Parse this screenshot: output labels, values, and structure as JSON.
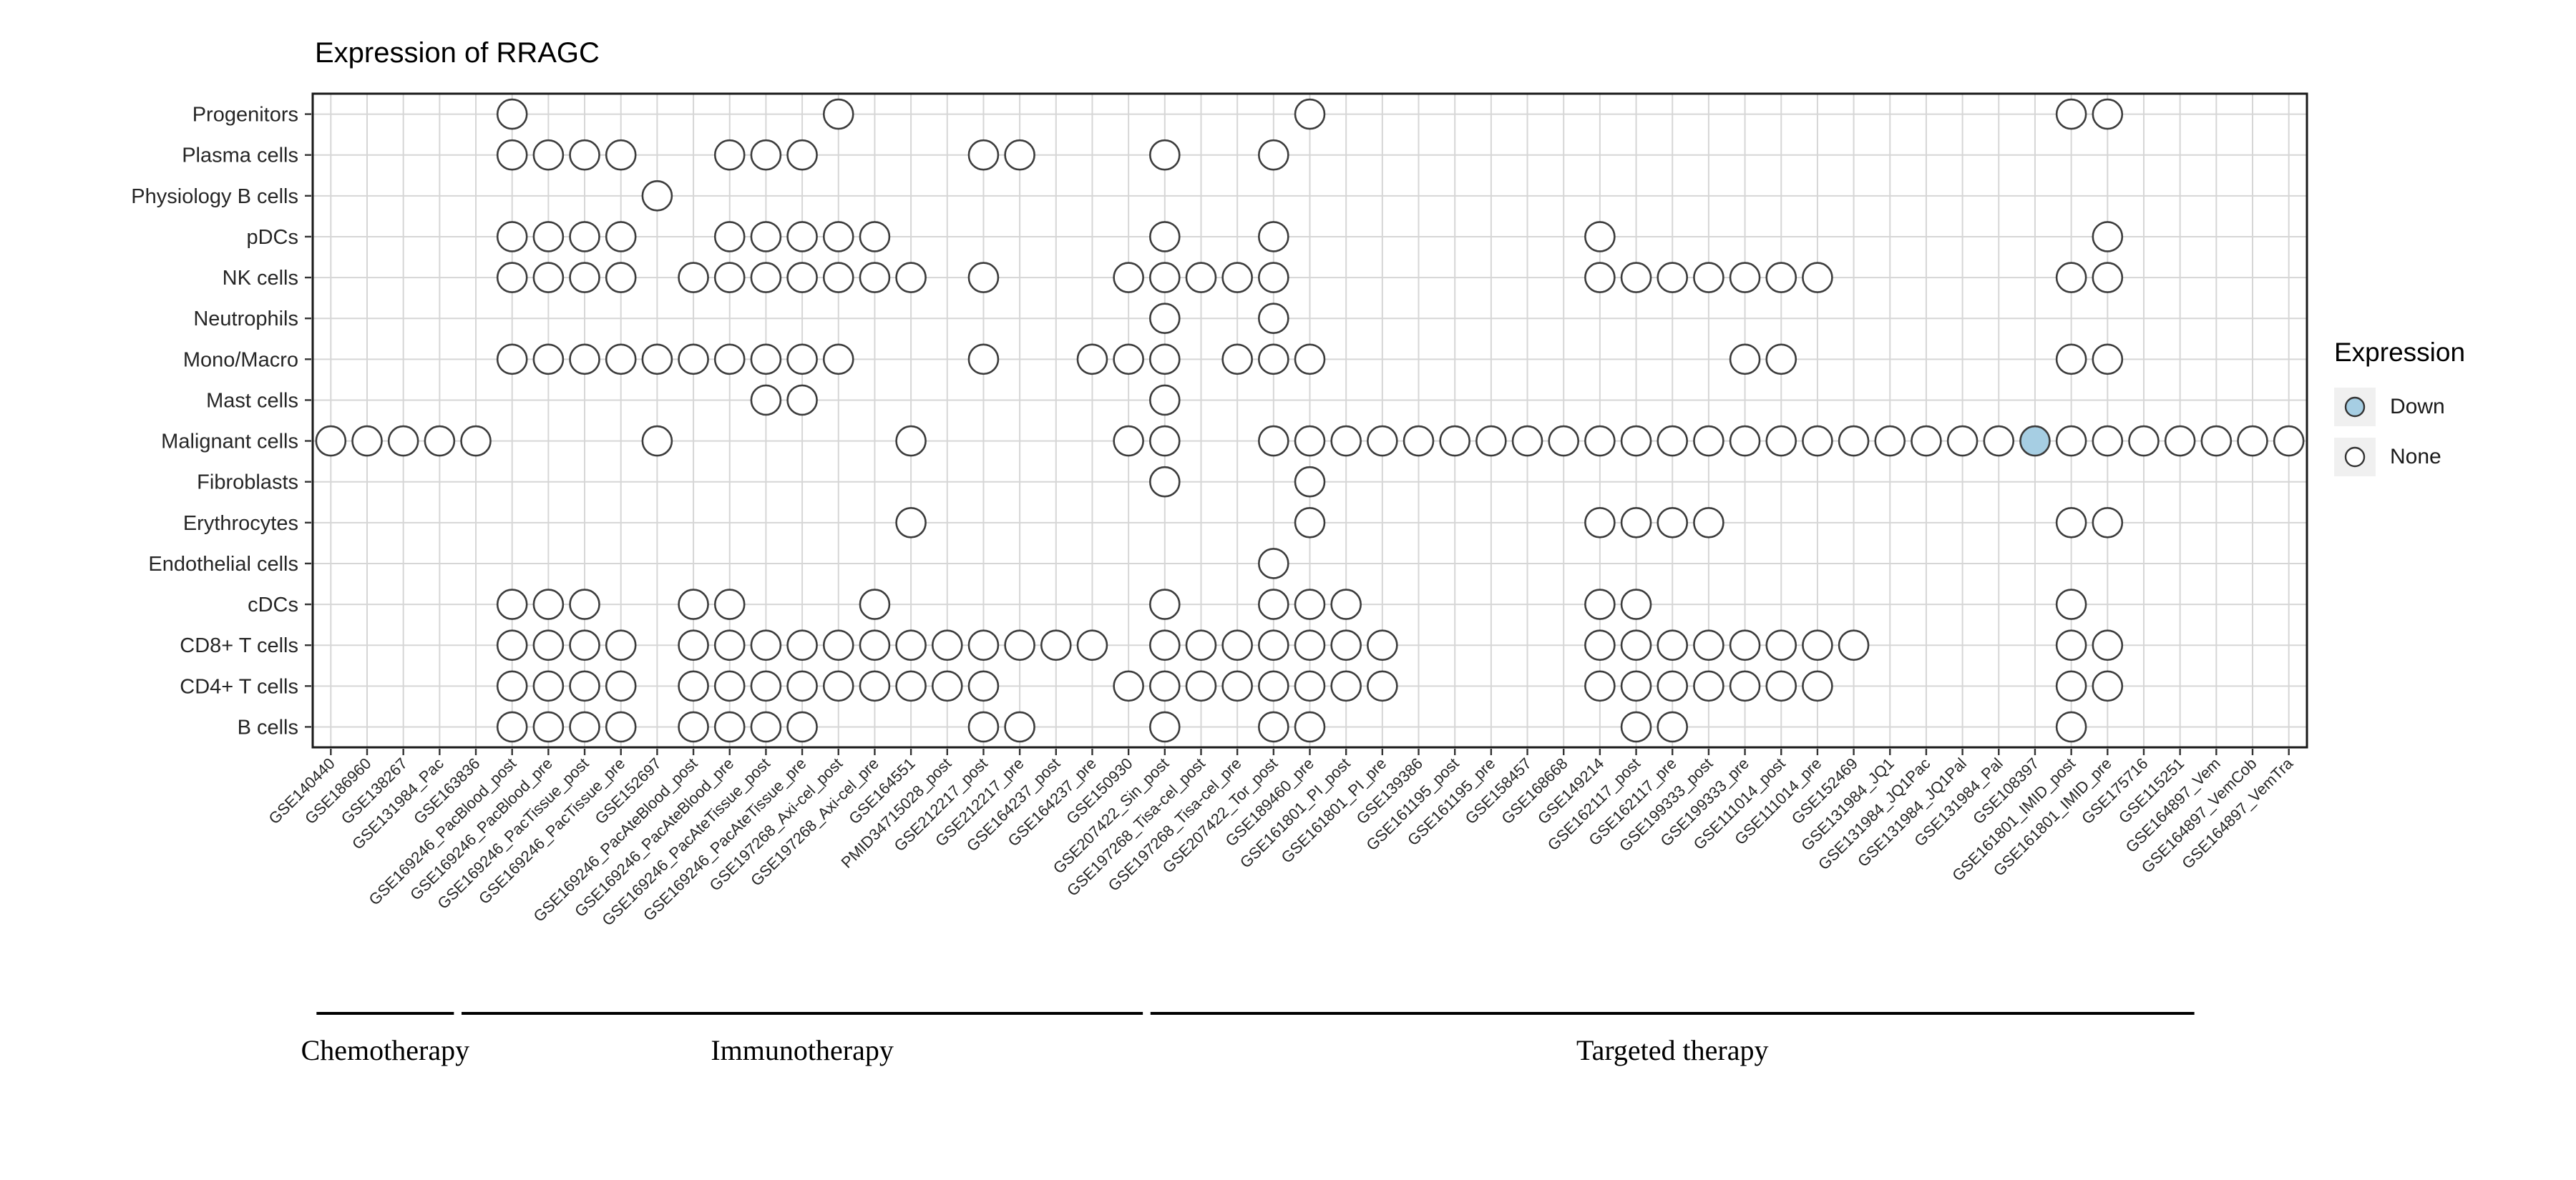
{
  "chart_data": {
    "type": "scatter",
    "variant": "presence-dot-matrix",
    "title": "Expression of RRAGC",
    "grid": true,
    "legend_position": "right",
    "rows": [
      "Progenitors",
      "Plasma cells",
      "Physiology B cells",
      "pDCs",
      "NK cells",
      "Neutrophils",
      "Mono/Macro",
      "Mast cells",
      "Malignant cells",
      "Fibroblasts",
      "Erythrocytes",
      "Endothelial cells",
      "cDCs",
      "CD8+ T cells",
      "CD4+ T cells",
      "B cells"
    ],
    "columns": [
      "GSE140440",
      "GSE186960",
      "GSE138267",
      "GSE131984_Pac",
      "GSE163836",
      "GSE169246_PacBlood_post",
      "GSE169246_PacBlood_pre",
      "GSE169246_PacTissue_post",
      "GSE169246_PacTissue_pre",
      "GSE152697",
      "GSE169246_PacAteBlood_post",
      "GSE169246_PacAteBlood_pre",
      "GSE169246_PacAteTissue_post",
      "GSE169246_PacAteTissue_pre",
      "GSE197268_Axi-cel_post",
      "GSE197268_Axi-cel_pre",
      "GSE164551",
      "PMID34715028_post",
      "GSE212217_post",
      "GSE212217_pre",
      "GSE164237_post",
      "GSE164237_pre",
      "GSE150930",
      "GSE207422_Sin_post",
      "GSE197268_Tisa-cel_post",
      "GSE197268_Tisa-cel_pre",
      "GSE207422_Tor_post",
      "GSE189460_pre",
      "GSE161801_PI_post",
      "GSE161801_PI_pre",
      "GSE139386",
      "GSE161195_post",
      "GSE161195_pre",
      "GSE158457",
      "GSE168668",
      "GSE149214",
      "GSE162117_post",
      "GSE162117_pre",
      "GSE199333_post",
      "GSE199333_pre",
      "GSE111014_post",
      "GSE111014_pre",
      "GSE152469",
      "GSE131984_JQ1",
      "GSE131984_JQ1Pac",
      "GSE131984_JQ1Pal",
      "GSE131984_Pal",
      "GSE108397",
      "GSE161801_IMID_post",
      "GSE161801_IMID_pre",
      "GSE175716",
      "GSE115251",
      "GSE164897_Vem",
      "GSE164897_VemCob",
      "GSE164897_VemTra"
    ],
    "presence": {
      "Progenitors": [
        6,
        15,
        28,
        49,
        50
      ],
      "Plasma cells": [
        6,
        7,
        8,
        9,
        12,
        13,
        14,
        19,
        20,
        24,
        27
      ],
      "Physiology B cells": [
        10
      ],
      "pDCs": [
        6,
        7,
        8,
        9,
        12,
        13,
        14,
        15,
        16,
        24,
        27,
        36,
        50
      ],
      "NK cells": [
        6,
        7,
        8,
        9,
        11,
        12,
        13,
        14,
        15,
        16,
        17,
        19,
        23,
        24,
        25,
        26,
        27,
        36,
        37,
        38,
        39,
        40,
        41,
        42,
        49,
        50
      ],
      "Neutrophils": [
        24,
        27
      ],
      "Mono/Macro": [
        6,
        7,
        8,
        9,
        10,
        11,
        12,
        13,
        14,
        15,
        19,
        22,
        23,
        24,
        26,
        27,
        28,
        40,
        41,
        49,
        50
      ],
      "Mast cells": [
        13,
        14,
        24
      ],
      "Malignant cells": [
        1,
        2,
        3,
        4,
        5,
        10,
        17,
        23,
        24,
        27,
        28,
        29,
        30,
        31,
        32,
        33,
        34,
        35,
        36,
        37,
        38,
        39,
        40,
        41,
        42,
        43,
        44,
        45,
        46,
        47,
        48,
        49,
        50,
        51,
        52,
        53,
        54,
        55
      ],
      "Fibroblasts": [
        24,
        28
      ],
      "Erythrocytes": [
        17,
        28,
        36,
        37,
        38,
        39,
        49,
        50
      ],
      "Endothelial cells": [
        27
      ],
      "cDCs": [
        6,
        7,
        8,
        11,
        12,
        16,
        24,
        27,
        28,
        29,
        36,
        37,
        49
      ],
      "CD8+ T cells": [
        6,
        7,
        8,
        9,
        11,
        12,
        13,
        14,
        15,
        16,
        17,
        18,
        19,
        20,
        21,
        22,
        24,
        25,
        26,
        27,
        28,
        29,
        30,
        36,
        37,
        38,
        39,
        40,
        41,
        42,
        43,
        49,
        50
      ],
      "CD4+ T cells": [
        6,
        7,
        8,
        9,
        11,
        12,
        13,
        14,
        15,
        16,
        17,
        18,
        19,
        23,
        24,
        25,
        26,
        27,
        28,
        29,
        30,
        36,
        37,
        38,
        39,
        40,
        41,
        42,
        49,
        50
      ],
      "B cells": [
        6,
        7,
        8,
        9,
        11,
        12,
        13,
        14,
        19,
        20,
        24,
        27,
        28,
        37,
        38,
        49
      ]
    },
    "down": [
      {
        "row": "Malignant cells",
        "column": "GSE108397"
      }
    ],
    "groups": [
      {
        "label": "Chemotherapy",
        "start": 1,
        "end": 4
      },
      {
        "label": "Immunotherapy",
        "start": 5,
        "end": 23
      },
      {
        "label": "Targeted therapy",
        "start": 24,
        "end": 52
      }
    ],
    "legend": {
      "title": "Expression",
      "items": [
        {
          "label": "Down",
          "color": "#a6cee3"
        },
        {
          "label": "None",
          "color": "#ffffff"
        }
      ]
    },
    "colors": {
      "circle_fill": "#ffffff",
      "circle_stroke": "#3c3c3c",
      "down_fill": "#a6cee3",
      "grid": "#d6d6d6",
      "border": "#1a1a1a",
      "text": "#262626"
    }
  }
}
